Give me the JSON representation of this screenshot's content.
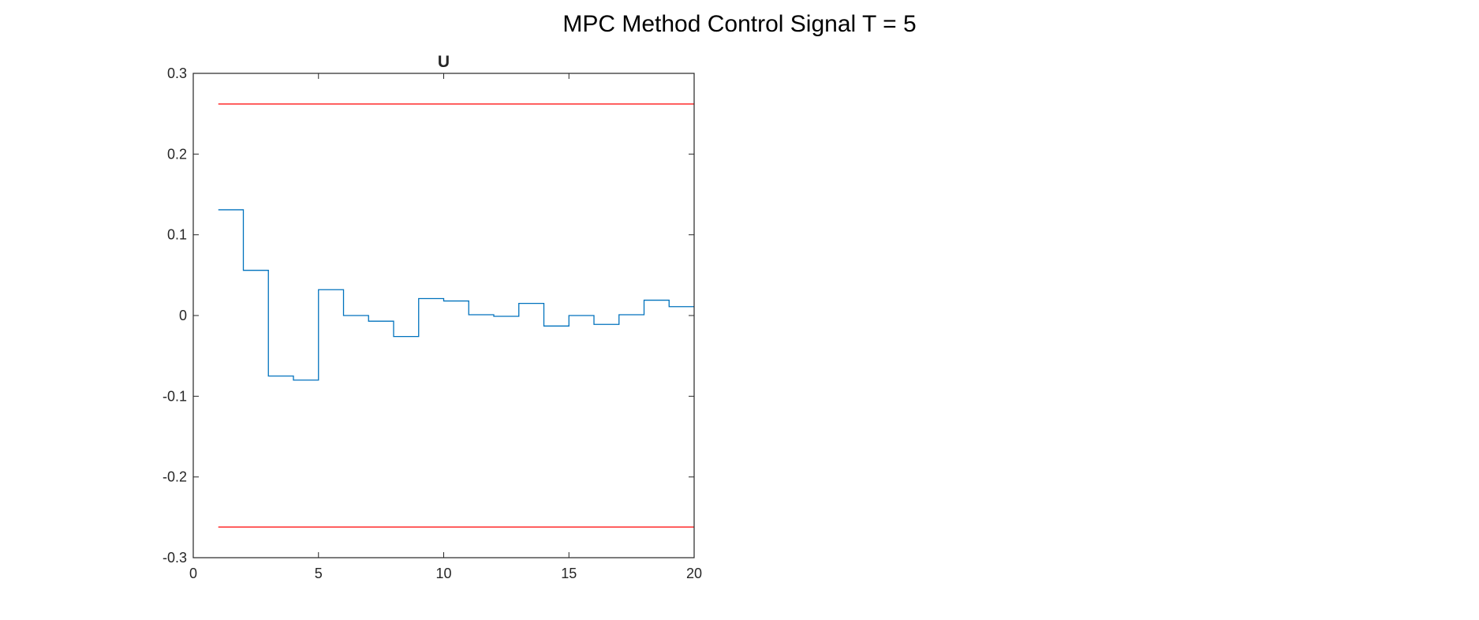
{
  "figure": {
    "title": "MPC Method Control Signal T = 5"
  },
  "chart_data": {
    "type": "line",
    "title": "U",
    "xlabel": "",
    "ylabel": "",
    "xlim": [
      0,
      20
    ],
    "ylim": [
      -0.3,
      0.3
    ],
    "xticks": [
      0,
      5,
      10,
      15,
      20
    ],
    "yticks": [
      -0.3,
      -0.2,
      -0.1,
      0,
      0.1,
      0.2,
      0.3
    ],
    "xtick_labels": [
      "0",
      "5",
      "10",
      "15",
      "20"
    ],
    "ytick_labels": [
      "-0.3",
      "-0.2",
      "-0.1",
      "0",
      "0.1",
      "0.2",
      "0.3"
    ],
    "grid": false,
    "legend": "none",
    "series": [
      {
        "style": "stairs",
        "color": "#0072BD",
        "x": [
          1,
          2,
          3,
          4,
          5,
          6,
          7,
          8,
          9,
          10,
          11,
          12,
          13,
          14,
          15,
          16,
          17,
          18,
          19,
          20
        ],
        "y": [
          0.131,
          0.056,
          -0.075,
          -0.08,
          0.032,
          0.0,
          -0.007,
          -0.026,
          0.021,
          0.018,
          0.001,
          -0.001,
          0.015,
          -0.013,
          0.0,
          -0.011,
          0.001,
          0.019,
          0.011,
          0.011
        ]
      },
      {
        "style": "line",
        "color": "#FF0000",
        "x": [
          1,
          20
        ],
        "y": [
          0.262,
          0.262
        ]
      },
      {
        "style": "line",
        "color": "#FF0000",
        "x": [
          1,
          20
        ],
        "y": [
          -0.262,
          -0.262
        ]
      }
    ]
  }
}
